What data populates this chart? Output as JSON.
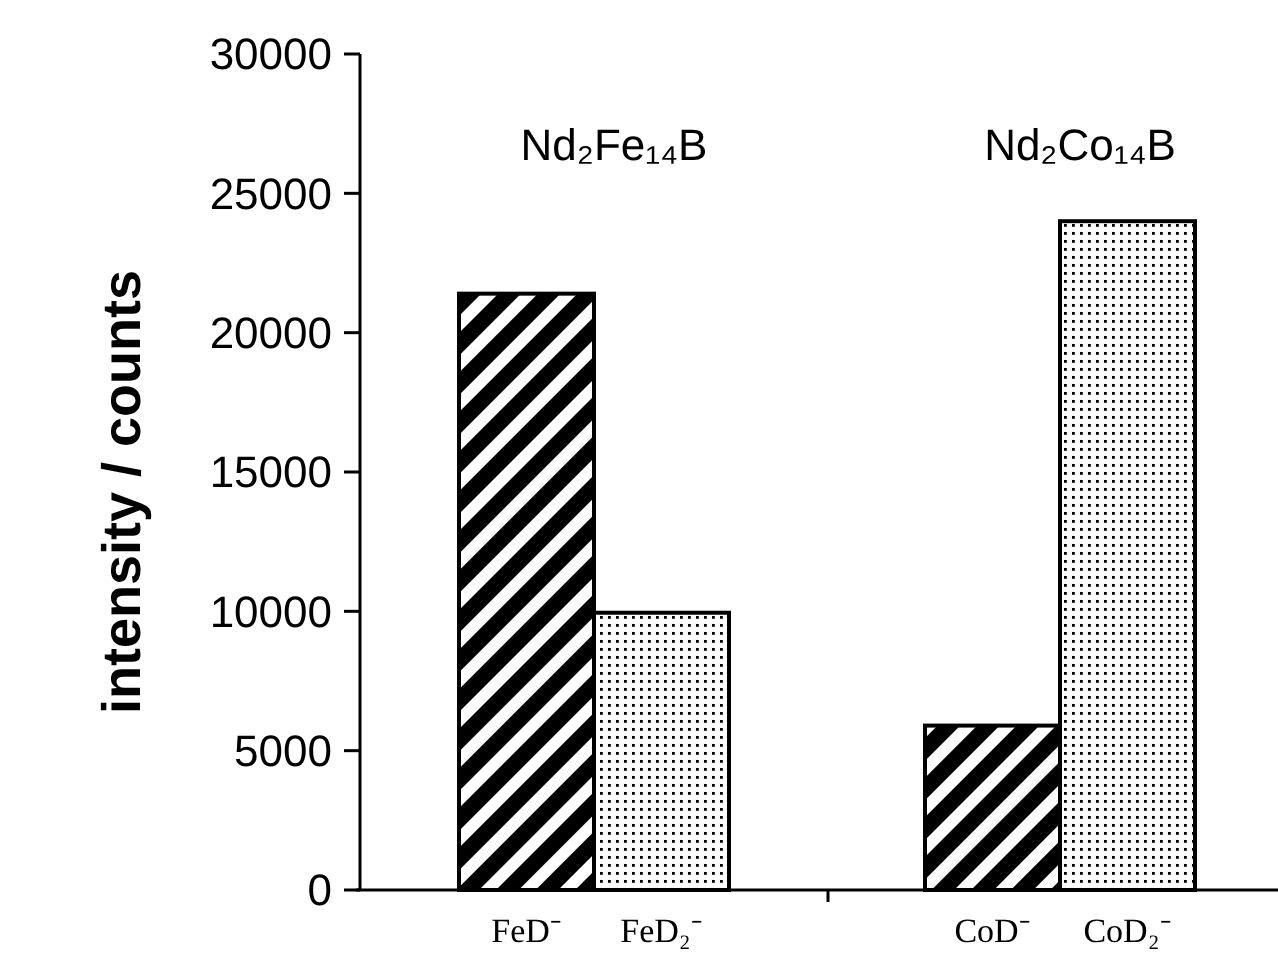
{
  "chart_data": {
    "type": "bar",
    "ylabel": "intensity / counts",
    "categories": [
      "FeD⁻",
      "FeD₂⁻",
      "CoD⁻",
      "CoD₂⁻"
    ],
    "values": [
      21400,
      9950,
      5900,
      24000
    ],
    "colors": [
      "#000000",
      "#000000",
      "#000000",
      "#000000"
    ],
    "ylim": [
      0,
      30000
    ],
    "yticks": [
      0,
      5000,
      10000,
      15000,
      20000,
      25000,
      30000
    ],
    "grid": false,
    "annotations": [
      "Nd₂Fe₁₄B",
      "Nd₂Co₁₄B"
    ]
  }
}
